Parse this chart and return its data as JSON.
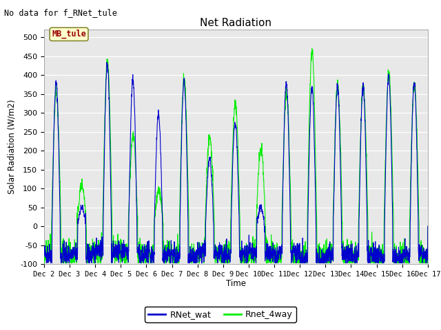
{
  "title": "Net Radiation",
  "top_left_text": "No data for f_RNet_tule",
  "ylabel": "Solar Radiation (W/m2)",
  "xlabel": "Time",
  "ylim": [
    -100,
    520
  ],
  "yticks": [
    -100,
    -50,
    0,
    50,
    100,
    150,
    200,
    250,
    300,
    350,
    400,
    450,
    500
  ],
  "bg_color": "#e8e8e8",
  "line_blue": "#0000cc",
  "line_green": "#00ee00",
  "legend_box_text": "MB_tule",
  "legend_box_bg": "#ffffcc",
  "legend_box_edge": "#888833",
  "legend_box_text_color": "#990000",
  "figsize": [
    6.4,
    4.8
  ],
  "dpi": 100
}
